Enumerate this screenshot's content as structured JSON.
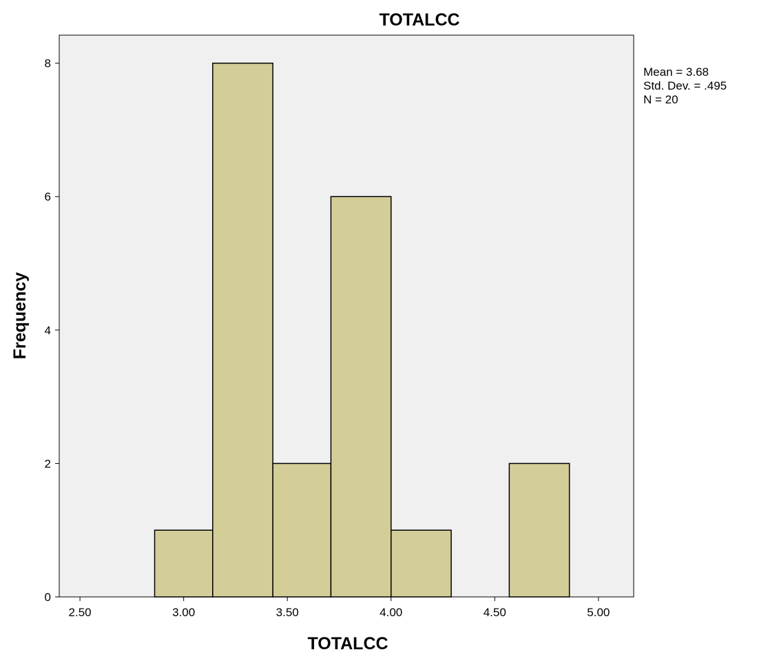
{
  "chart_data": {
    "type": "bar",
    "subtype": "histogram",
    "title": "TOTALCC",
    "xlabel": "TOTALCC",
    "ylabel": "Frequency",
    "xlim": [
      2.4,
      5.17
    ],
    "ylim": [
      0,
      8.42
    ],
    "x_ticks": [
      2.5,
      3.0,
      3.5,
      4.0,
      4.5,
      5.0
    ],
    "x_tick_labels": [
      "2.50",
      "3.00",
      "3.50",
      "4.00",
      "4.50",
      "5.00"
    ],
    "y_ticks": [
      0,
      2,
      4,
      6,
      8
    ],
    "y_tick_labels": [
      "0",
      "2",
      "4",
      "6",
      "8"
    ],
    "bins": [
      {
        "start": 2.86,
        "end": 3.14,
        "count": 1
      },
      {
        "start": 3.14,
        "end": 3.43,
        "count": 8
      },
      {
        "start": 3.43,
        "end": 3.71,
        "count": 2
      },
      {
        "start": 3.71,
        "end": 4.0,
        "count": 6
      },
      {
        "start": 4.0,
        "end": 4.29,
        "count": 1
      },
      {
        "start": 4.29,
        "end": 4.57,
        "count": 0
      },
      {
        "start": 4.57,
        "end": 4.86,
        "count": 2
      }
    ],
    "stats": [
      "Mean = 3.68",
      "Std. Dev. = .495",
      "N = 20"
    ],
    "grid": false,
    "legend": "none",
    "colors": {
      "bar_fill": "#D3CE97",
      "bar_stroke": "#000000",
      "plot_background": "#F0F0F0",
      "frame": "#000000"
    }
  }
}
